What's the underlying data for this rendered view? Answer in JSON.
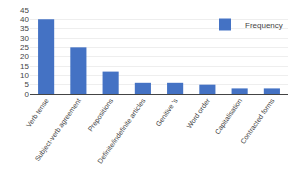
{
  "chart_data": {
    "type": "bar",
    "categories": [
      "Verb tense",
      "Subject-verb agreement",
      "Prepositions",
      "Definite/indefinite articles",
      "Genitive 's",
      "Word order",
      "Capitalisation",
      "Contracted forms"
    ],
    "series": [
      {
        "name": "Frequency",
        "color": "#4472C4",
        "values": [
          40,
          25,
          12,
          6,
          6,
          5,
          3,
          3
        ]
      }
    ],
    "ylim": [
      0,
      45
    ],
    "yticks": [
      0,
      5,
      10,
      15,
      20,
      25,
      30,
      35,
      40,
      45
    ],
    "grid": true,
    "legend": "upper right"
  }
}
